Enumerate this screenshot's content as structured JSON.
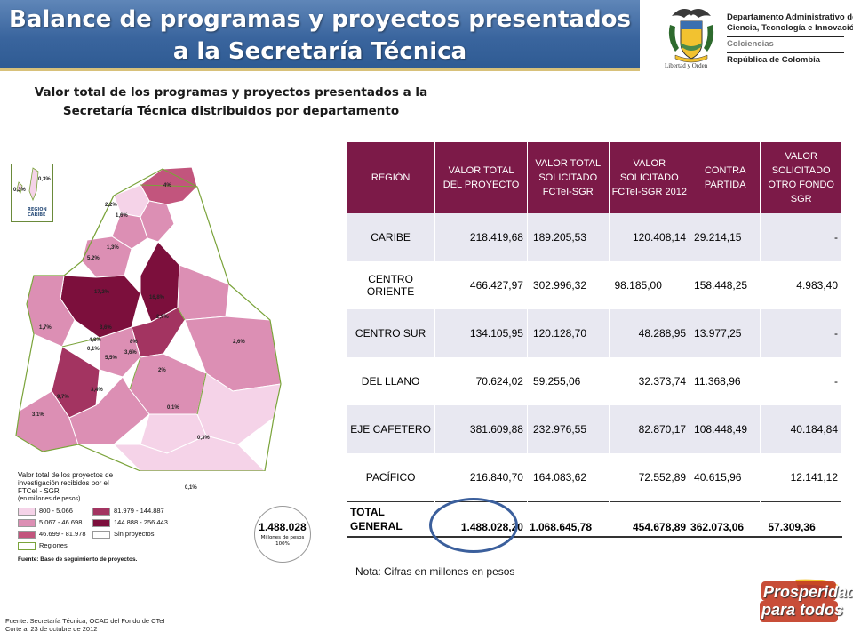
{
  "header": {
    "title_line1": "Balance de programas y proyectos presentados",
    "title_line2": "a la Secretaría Técnica",
    "colors": {
      "band": "#3a659e",
      "accent_line": "#d8c17a"
    }
  },
  "logo": {
    "line1": "Departamento Administrativo de",
    "line2": "Ciencia, Tecnología e Innovación",
    "line3": "Colciencias",
    "line4": "República de Colombia",
    "motto": "Libertad y Orden"
  },
  "subtitle": {
    "line1": "Valor total de los programas y proyectos presentados a la",
    "line2": "Secretaría Técnica distribuidos por departamento"
  },
  "map": {
    "inset_label_line1": "REGION",
    "inset_label_line2": "CARIBE",
    "inset_pcts": [
      "0,3%",
      "0,3%"
    ],
    "labels": [
      "4%",
      "2,2%",
      "1,6%",
      "1,3%",
      "5,2%",
      "17,2%",
      "16,8%",
      "2,9%",
      "1,7%",
      "3,6%",
      "4,8%",
      "0,1%",
      "8%",
      "3,6%",
      "5,5%",
      "2,6%",
      "2%",
      "9,7%",
      "3,4%",
      "3,1%",
      "0,1%",
      "0,3%",
      "0,1%"
    ],
    "legend": {
      "title": "Valor total de los proyectos de investigación recibidos por el FTCeI - SGR",
      "unit": "(en millones de pesos)",
      "items": [
        {
          "label": "800 - 5.066",
          "color": "#f5d3e8"
        },
        {
          "label": "5.067 - 46.698",
          "color": "#dc8fb4"
        },
        {
          "label": "46.699 - 81.978",
          "color": "#c2557d"
        },
        {
          "label": "81.979 - 144.887",
          "color": "#a33461"
        },
        {
          "label": "144.888 - 256.443",
          "color": "#7c0f3c"
        },
        {
          "label": "Sin proyectos",
          "color": "#ffffff"
        },
        {
          "label": "Regiones",
          "color": "#ffffff"
        }
      ],
      "source": "Fuente: Base de seguimiento de proyectos."
    },
    "total": {
      "value": "1.488.028",
      "unit": "Millones de pesos",
      "pct": "100%"
    }
  },
  "table": {
    "headers": [
      "REGIÓN",
      "VALOR TOTAL DEL PROYECTO",
      "VALOR TOTAL SOLICITADO FCTeI-SGR",
      "VALOR SOLICITADO FCTeI-SGR 2012",
      "CONTRA PARTIDA",
      "VALOR SOLICITADO OTRO FONDO SGR"
    ],
    "rows": [
      {
        "region": "CARIBE",
        "total": "218.419,68",
        "fcteI": "189.205,53",
        "y2012": "120.408,14",
        "contra": "29.214,15",
        "otro": "-"
      },
      {
        "region": "CENTRO ORIENTE",
        "total": "466.427,97",
        "fcteI": "302.996,32",
        "y2012": "98.185,00",
        "contra": "158.448,25",
        "otro": "4.983,40"
      },
      {
        "region": "CENTRO SUR",
        "total": "134.105,95",
        "fcteI": "120.128,70",
        "y2012": "48.288,95",
        "contra": "13.977,25",
        "otro": "-"
      },
      {
        "region": "DEL LLANO",
        "total": "70.624,02",
        "fcteI": "59.255,06",
        "y2012": "32.373,74",
        "contra": "11.368,96",
        "otro": "-"
      },
      {
        "region": "EJE CAFETERO",
        "total": "381.609,88",
        "fcteI": "232.976,55",
        "y2012": "82.870,17",
        "contra": "108.448,49",
        "otro": "40.184,84"
      },
      {
        "region": "PACÍFICO",
        "total": "216.840,70",
        "fcteI": "164.083,62",
        "y2012": "72.552,89",
        "contra": "40.615,96",
        "otro": "12.141,12"
      }
    ],
    "total_row": {
      "label_line1": "TOTAL",
      "label_line2": "GENERAL",
      "total": "1.488.028,20",
      "fcteI": "1.068.645,78",
      "y2012": "454.678,89",
      "contra": "362.073,06",
      "otro": "57.309,36"
    },
    "colors": {
      "header_bg": "#7c1a48",
      "stripe": "#e8e8f1"
    }
  },
  "note": "Nota: Cifras en millones en pesos",
  "footer": {
    "line1": "Fuente: Secretaría Técnica, OCAD del Fondo de CTeI",
    "line2": "Corte al 23  de octubre de 2012"
  },
  "brand": {
    "line1": "Prosperidad",
    "line2": "para todos"
  }
}
